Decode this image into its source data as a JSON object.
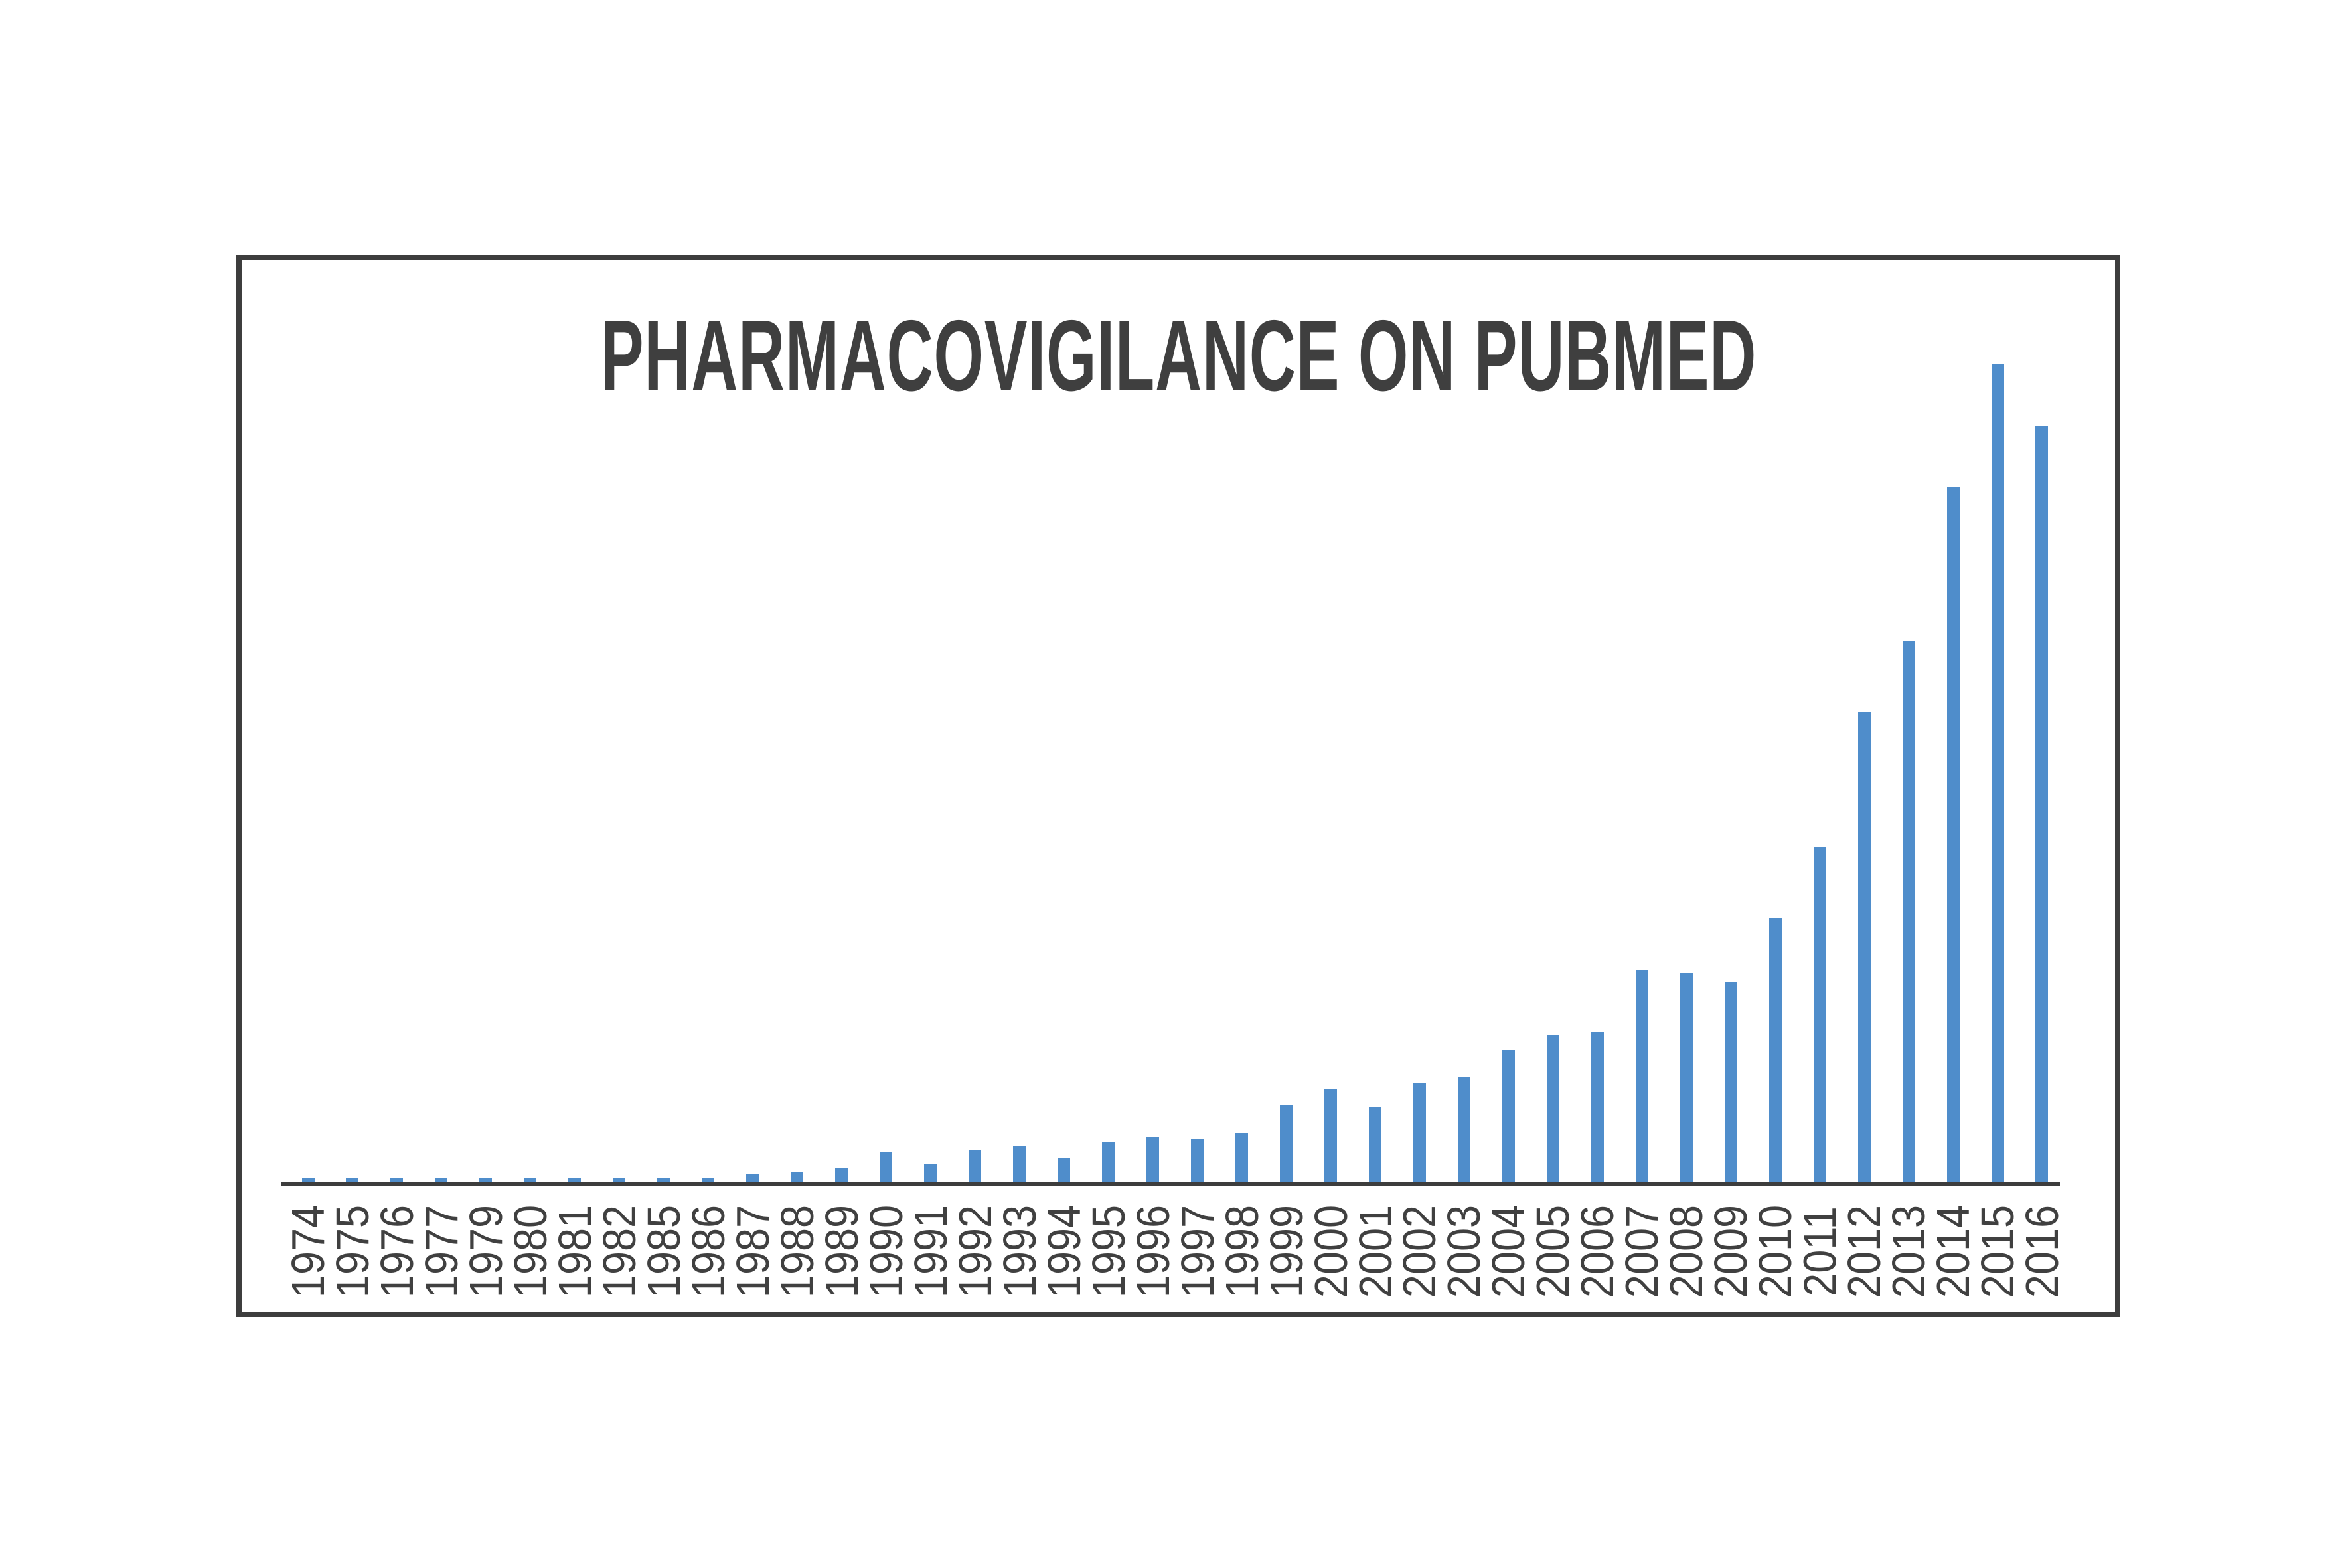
{
  "chart_data": {
    "type": "bar",
    "title": "PHARMACOVIGILANCE ON PUBMED",
    "xlabel": "",
    "ylabel": "",
    "legend": "none",
    "gridlines": false,
    "y_axis_shown": false,
    "x_tick_rotation_degrees": 90,
    "ylim": [
      0,
      1300
    ],
    "units": "PubMed records per year (approximate, no y-axis scale shown)",
    "missing_years": [
      "1978",
      "1983",
      "1984"
    ],
    "categories": [
      "1974",
      "1975",
      "1976",
      "1977",
      "1979",
      "1980",
      "1981",
      "1982",
      "1985",
      "1986",
      "1987",
      "1988",
      "1989",
      "1990",
      "1991",
      "1992",
      "1993",
      "1994",
      "1995",
      "1996",
      "1997",
      "1998",
      "1999",
      "2000",
      "2001",
      "2002",
      "2003",
      "2004",
      "2005",
      "2006",
      "2007",
      "2008",
      "2009",
      "2010",
      "2011",
      "2012",
      "2013",
      "2014",
      "2015",
      "2016"
    ],
    "values": [
      6,
      6,
      6,
      6,
      6,
      6,
      6,
      6,
      7,
      7,
      12,
      16,
      21,
      46,
      28,
      48,
      55,
      37,
      60,
      69,
      65,
      74,
      116,
      140,
      113,
      149,
      158,
      200,
      222,
      227,
      320,
      316,
      302,
      398,
      505,
      708,
      816,
      1047,
      1233,
      1139
    ],
    "colors": {
      "bar": "#4f8dcb",
      "axis": "#3d3d3d",
      "frame_border": "#3d3d3d",
      "title_text": "#3f3f3f",
      "tick_text": "#404040",
      "background": "#ffffff"
    }
  }
}
